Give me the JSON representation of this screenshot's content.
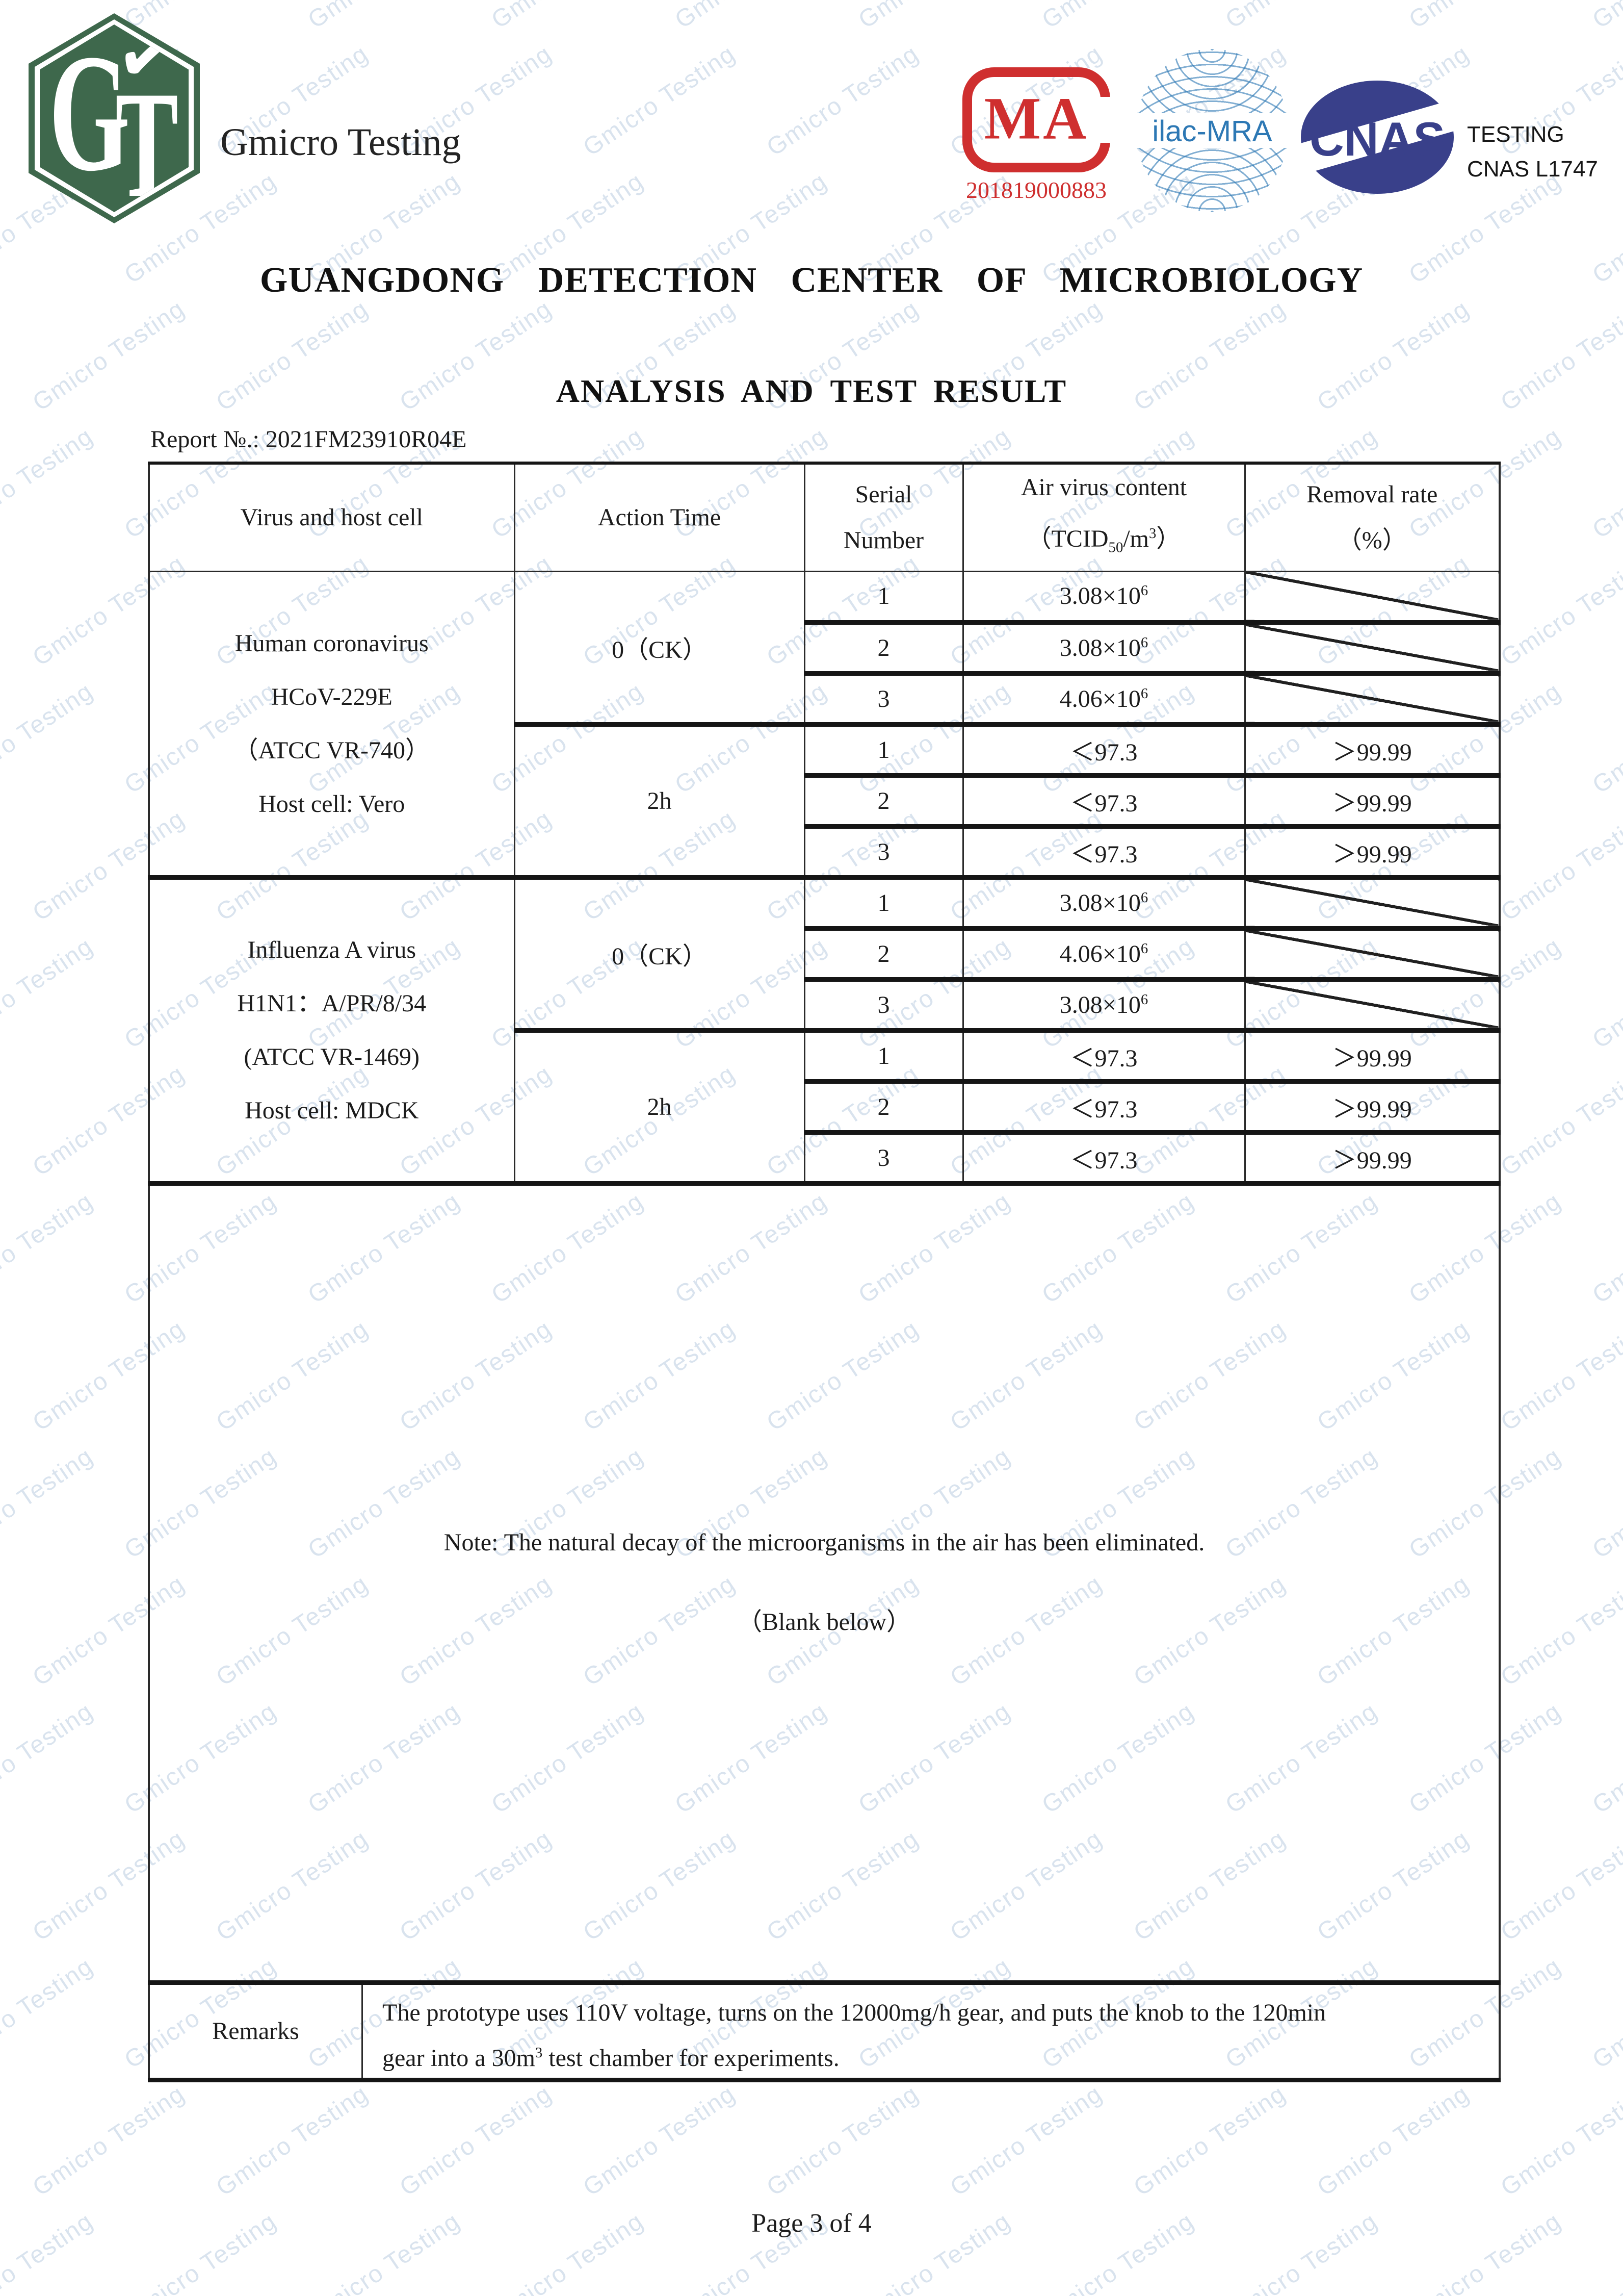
{
  "watermark": {
    "text": "Gmicro Testing",
    "color": "rgba(116,152,194,0.27)"
  },
  "masthead": {
    "brand": "Gmicro Testing",
    "logo": {
      "letter_g": "G",
      "letter_t": "T",
      "check": "✔",
      "green": "#3e684c"
    },
    "cma": {
      "letters": "MA",
      "number": "201819000883",
      "red": "#cf2f2f"
    },
    "ilac": {
      "label": "ilac-MRA",
      "blue": "#2d78b4"
    },
    "cnas": {
      "label": "CNAS",
      "navy": "#39408a",
      "caption_line1": "TESTING",
      "caption_line2": "CNAS L1747"
    }
  },
  "titles": {
    "center": "GUANGDONG DETECTION CENTER OF MICROBIOLOGY",
    "doc": "ANALYSIS AND TEST RESULT",
    "report_no": "Report №.: 2021FM23910R04E"
  },
  "table": {
    "headers": {
      "virus": "Virus and host cell",
      "action": "Action Time",
      "serial1": "Serial",
      "serial2": "Number",
      "content1": "Air virus content",
      "content2_open": "（TCID",
      "content2_sub": "50",
      "content2_mid": "/m",
      "content2_sup": "3",
      "content2_close": "）",
      "removal1": "Removal rate",
      "removal2": "（%）"
    },
    "blocks": [
      {
        "virus_lines": [
          "Human coronavirus",
          "HCoV-229E",
          "（ATCC VR-740）",
          "Host cell: Vero"
        ],
        "groups": [
          {
            "action": "0（CK）",
            "rows": [
              {
                "serial": "1",
                "value": "3.08×10",
                "sup": "6",
                "removal": ""
              },
              {
                "serial": "2",
                "value": "3.08×10",
                "sup": "6",
                "removal": ""
              },
              {
                "serial": "3",
                "value": "4.06×10",
                "sup": "6",
                "removal": ""
              }
            ]
          },
          {
            "action": "2h",
            "rows": [
              {
                "serial": "1",
                "value": "＜97.3",
                "sup": "",
                "removal": "＞99.99"
              },
              {
                "serial": "2",
                "value": "＜97.3",
                "sup": "",
                "removal": "＞99.99"
              },
              {
                "serial": "3",
                "value": "＜97.3",
                "sup": "",
                "removal": "＞99.99"
              }
            ]
          }
        ]
      },
      {
        "virus_lines": [
          "Influenza A virus",
          "H1N1：A/PR/8/34",
          "(ATCC VR-1469)",
          "Host cell: MDCK"
        ],
        "groups": [
          {
            "action": "0（CK）",
            "rows": [
              {
                "serial": "1",
                "value": "3.08×10",
                "sup": "6",
                "removal": ""
              },
              {
                "serial": "2",
                "value": "4.06×10",
                "sup": "6",
                "removal": ""
              },
              {
                "serial": "3",
                "value": "3.08×10",
                "sup": "6",
                "removal": ""
              }
            ]
          },
          {
            "action": "2h",
            "rows": [
              {
                "serial": "1",
                "value": "＜97.3",
                "sup": "",
                "removal": "＞99.99"
              },
              {
                "serial": "2",
                "value": "＜97.3",
                "sup": "",
                "removal": "＞99.99"
              },
              {
                "serial": "3",
                "value": "＜97.3",
                "sup": "",
                "removal": "＞99.99"
              }
            ]
          }
        ]
      }
    ],
    "note": "Note: The natural decay of the microorganisms in the air has been eliminated.",
    "blank_below": "（Blank below）",
    "remarks_label": "Remarks",
    "remarks_part1": "The prototype uses 110V voltage, turns on the 12000mg/h gear, and puts the knob to the 120min",
    "remarks_part2_pre": "gear into a 30m",
    "remarks_sup": "3",
    "remarks_part2_post": " test chamber for experiments."
  },
  "footer": {
    "page": "Page 3 of 4"
  }
}
